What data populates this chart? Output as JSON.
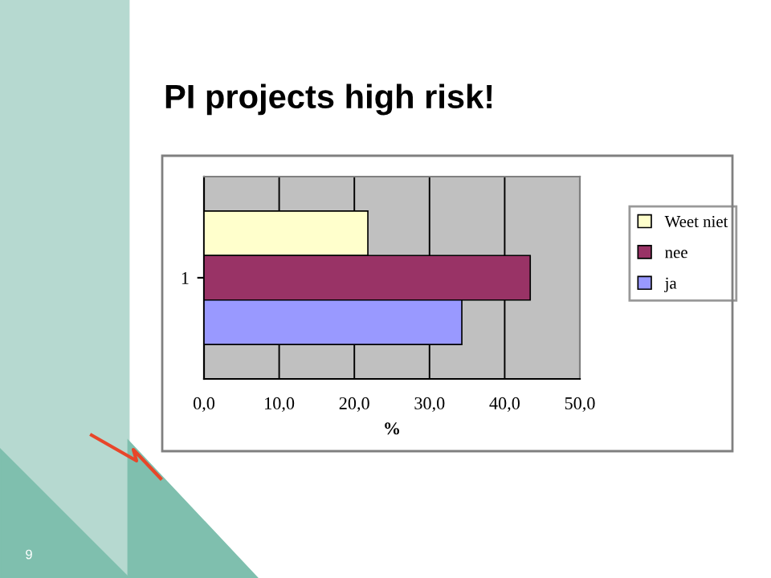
{
  "chart_data": {
    "type": "bar",
    "orientation": "horizontal",
    "title": "PI projects high risk!",
    "xlabel": "%",
    "categories": [
      "1"
    ],
    "series": [
      {
        "name": "Weet niet",
        "color": "#ffffcc",
        "values": [
          21.8
        ]
      },
      {
        "name": "nee",
        "color": "#993366",
        "values": [
          43.4
        ]
      },
      {
        "name": "ja",
        "color": "#9999ff",
        "values": [
          34.3
        ]
      }
    ],
    "xlim": [
      0,
      50
    ],
    "xticks": [
      {
        "value": 0,
        "label": "0,0"
      },
      {
        "value": 10,
        "label": "10,0"
      },
      {
        "value": 20,
        "label": "20,0"
      },
      {
        "value": 30,
        "label": "30,0"
      },
      {
        "value": 40,
        "label": "40,0"
      },
      {
        "value": 50,
        "label": "50,0"
      }
    ],
    "grid": "x",
    "legend": "right",
    "annotations": [
      "9"
    ]
  }
}
